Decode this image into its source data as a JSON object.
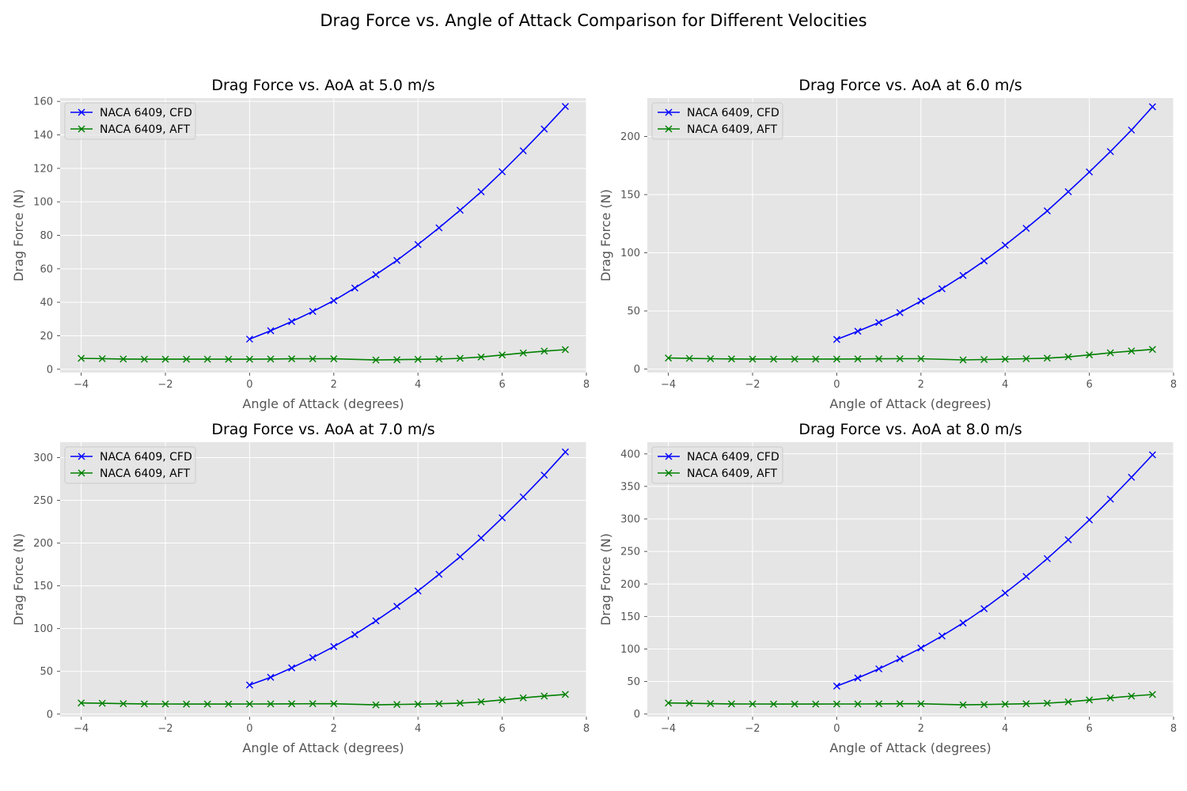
{
  "figure": {
    "title": "Drag Force vs. Angle of Attack Comparison for Different Velocities"
  },
  "colors": {
    "cfd": "#0000ff",
    "aft": "#008000",
    "plot_bg": "#e5e5e5",
    "grid": "#ffffff",
    "tick_text": "#555555"
  },
  "chart_data": [
    {
      "type": "line",
      "title": "Drag Force vs. AoA at 5.0 m/s",
      "xlabel": "Angle of Attack (degrees)",
      "ylabel": "Drag Force (N)",
      "xlim": [
        -4.5,
        8
      ],
      "ylim": [
        -2,
        162
      ],
      "xticks": [
        -4,
        -2,
        0,
        2,
        4,
        6,
        8
      ],
      "xtick_labels": [
        "−4",
        "−2",
        "0",
        "2",
        "4",
        "6",
        "8"
      ],
      "yticks": [
        0,
        20,
        40,
        60,
        80,
        100,
        120,
        140,
        160
      ],
      "ytick_labels": [
        "0",
        "20",
        "40",
        "60",
        "80",
        "100",
        "120",
        "140",
        "160"
      ],
      "grid": true,
      "legend_position": "upper-left",
      "series": [
        {
          "name": "NACA 6409, CFD",
          "color": "#0000ff",
          "marker": "x",
          "x": [
            0,
            0.5,
            1,
            1.5,
            2,
            2.5,
            3,
            3.5,
            4,
            4.5,
            5,
            5.5,
            6,
            6.5,
            7,
            7.5
          ],
          "y": [
            18,
            23,
            28.5,
            34.5,
            41,
            48.5,
            56.5,
            65,
            74.5,
            84.5,
            95,
            106,
            118,
            130.5,
            143.5,
            157
          ]
        },
        {
          "name": "NACA 6409, AFT",
          "color": "#008000",
          "marker": "x",
          "x": [
            -4,
            -3.5,
            -3,
            -2.5,
            -2,
            -1.5,
            -1,
            -0.5,
            0,
            0.5,
            1,
            1.5,
            2,
            3,
            3.5,
            4,
            4.5,
            5,
            5.5,
            6,
            6.5,
            7,
            7.5
          ],
          "y": [
            6.5,
            6.3,
            6.1,
            6.0,
            6.0,
            6.0,
            6.0,
            6.0,
            6.0,
            6.1,
            6.2,
            6.2,
            6.2,
            5.5,
            5.7,
            5.9,
            6.1,
            6.5,
            7.3,
            8.5,
            9.7,
            10.8,
            11.7
          ]
        }
      ]
    },
    {
      "type": "line",
      "title": "Drag Force vs. AoA at 6.0 m/s",
      "xlabel": "Angle of Attack (degrees)",
      "ylabel": "Drag Force (N)",
      "xlim": [
        -4.5,
        8
      ],
      "ylim": [
        -3,
        233
      ],
      "xticks": [
        -4,
        -2,
        0,
        2,
        4,
        6,
        8
      ],
      "xtick_labels": [
        "−4",
        "−2",
        "0",
        "2",
        "4",
        "6",
        "8"
      ],
      "yticks": [
        0,
        50,
        100,
        150,
        200
      ],
      "ytick_labels": [
        "0",
        "50",
        "100",
        "150",
        "200"
      ],
      "grid": true,
      "legend_position": "upper-left",
      "series": [
        {
          "name": "NACA 6409, CFD",
          "color": "#0000ff",
          "marker": "x",
          "x": [
            0,
            0.5,
            1,
            1.5,
            2,
            2.5,
            3,
            3.5,
            4,
            4.5,
            5,
            5.5,
            6,
            6.5,
            7,
            7.5
          ],
          "y": [
            25.5,
            32.5,
            40,
            48.5,
            58.5,
            69,
            80.5,
            93,
            106.5,
            121,
            136,
            152.5,
            169.5,
            187,
            205.5,
            225.5
          ]
        },
        {
          "name": "NACA 6409, AFT",
          "color": "#008000",
          "marker": "x",
          "x": [
            -4,
            -3.5,
            -3,
            -2.5,
            -2,
            -1.5,
            -1,
            -0.5,
            0,
            0.5,
            1,
            1.5,
            2,
            3,
            3.5,
            4,
            4.5,
            5,
            5.5,
            6,
            6.5,
            7,
            7.5
          ],
          "y": [
            9.5,
            9.2,
            8.9,
            8.7,
            8.6,
            8.6,
            8.6,
            8.6,
            8.6,
            8.7,
            8.8,
            8.9,
            8.9,
            7.9,
            8.2,
            8.5,
            8.9,
            9.4,
            10.5,
            12.2,
            14,
            15.5,
            16.9
          ]
        }
      ]
    },
    {
      "type": "line",
      "title": "Drag Force vs. AoA at 7.0 m/s",
      "xlabel": "Angle of Attack (degrees)",
      "ylabel": "Drag Force (N)",
      "xlim": [
        -4.5,
        8
      ],
      "ylim": [
        -3,
        318
      ],
      "xticks": [
        -4,
        -2,
        0,
        2,
        4,
        6,
        8
      ],
      "xtick_labels": [
        "−4",
        "−2",
        "0",
        "2",
        "4",
        "6",
        "8"
      ],
      "yticks": [
        0,
        50,
        100,
        150,
        200,
        250,
        300
      ],
      "ytick_labels": [
        "0",
        "50",
        "100",
        "150",
        "200",
        "250",
        "300"
      ],
      "grid": true,
      "legend_position": "upper-left",
      "series": [
        {
          "name": "NACA 6409, CFD",
          "color": "#0000ff",
          "marker": "x",
          "x": [
            0,
            0.5,
            1,
            1.5,
            2,
            2.5,
            3,
            3.5,
            4,
            4.5,
            5,
            5.5,
            6,
            6.5,
            7,
            7.5
          ],
          "y": [
            34,
            43,
            54,
            66,
            79,
            93,
            109,
            126,
            144,
            163.5,
            184,
            206,
            229.5,
            254,
            279.5,
            306.5
          ]
        },
        {
          "name": "NACA 6409, AFT",
          "color": "#008000",
          "marker": "x",
          "x": [
            -4,
            -3.5,
            -3,
            -2.5,
            -2,
            -1.5,
            -1,
            -0.5,
            0,
            0.5,
            1,
            1.5,
            2,
            3,
            3.5,
            4,
            4.5,
            5,
            5.5,
            6,
            6.5,
            7,
            7.5
          ],
          "y": [
            13,
            12.6,
            12.2,
            11.9,
            11.8,
            11.7,
            11.7,
            11.7,
            11.8,
            11.9,
            12,
            12.1,
            12.1,
            10.8,
            11.2,
            11.6,
            12.1,
            12.8,
            14.3,
            16.6,
            19,
            21.1,
            23
          ]
        }
      ]
    },
    {
      "type": "line",
      "title": "Drag Force vs. AoA at 8.0 m/s",
      "xlabel": "Angle of Attack (degrees)",
      "ylabel": "Drag Force (N)",
      "xlim": [
        -4.5,
        8
      ],
      "ylim": [
        -4,
        418
      ],
      "xticks": [
        -4,
        -2,
        0,
        2,
        4,
        6,
        8
      ],
      "xtick_labels": [
        "−4",
        "−2",
        "0",
        "2",
        "4",
        "6",
        "8"
      ],
      "yticks": [
        0,
        50,
        100,
        150,
        200,
        250,
        300,
        350,
        400
      ],
      "ytick_labels": [
        "0",
        "50",
        "100",
        "150",
        "200",
        "250",
        "300",
        "350",
        "400"
      ],
      "grid": true,
      "legend_position": "upper-left",
      "series": [
        {
          "name": "NACA 6409, CFD",
          "color": "#0000ff",
          "marker": "x",
          "x": [
            0,
            0.5,
            1,
            1.5,
            2,
            2.5,
            3,
            3.5,
            4,
            4.5,
            5,
            5.5,
            6,
            6.5,
            7,
            7.5
          ],
          "y": [
            43,
            55.5,
            69.5,
            85,
            101.5,
            120,
            140,
            162,
            186,
            211.5,
            239,
            268,
            298.5,
            330.5,
            364,
            398.5
          ]
        },
        {
          "name": "NACA 6409, AFT",
          "color": "#008000",
          "marker": "x",
          "x": [
            -4,
            -3.5,
            -3,
            -2.5,
            -2,
            -1.5,
            -1,
            -0.5,
            0,
            0.5,
            1,
            1.5,
            2,
            3,
            3.5,
            4,
            4.5,
            5,
            5.5,
            6,
            6.5,
            7,
            7.5
          ],
          "y": [
            17,
            16.5,
            16,
            15.6,
            15.4,
            15.3,
            15.3,
            15.3,
            15.4,
            15.5,
            15.7,
            15.8,
            15.8,
            14.1,
            14.6,
            15.2,
            15.8,
            16.7,
            18.7,
            21.7,
            24.8,
            27.6,
            30
          ]
        }
      ]
    }
  ]
}
